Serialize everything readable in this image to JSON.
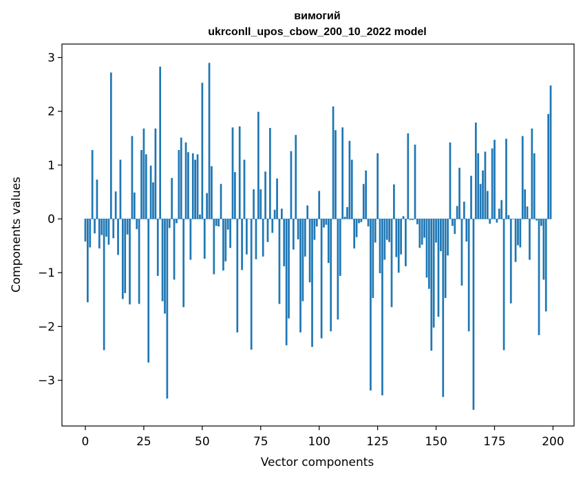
{
  "chart_data": {
    "type": "bar",
    "title_line1": "вимогий",
    "title_line2": "ukrconll_upos_cbow_200_10_2022 model",
    "xlabel": "Vector components",
    "ylabel": "Components values",
    "xlim": [
      -10,
      209
    ],
    "ylim": [
      -3.85,
      3.25
    ],
    "xticks": [
      0,
      25,
      50,
      75,
      100,
      125,
      150,
      175,
      200
    ],
    "yticks": [
      -3,
      -2,
      -1,
      0,
      1,
      2,
      3
    ],
    "ytick_labels": [
      "−3",
      "−2",
      "−1",
      "0",
      "1",
      "2",
      "3"
    ],
    "grid": false,
    "color": "#1f77b4",
    "x": [
      0,
      1,
      2,
      3,
      4,
      5,
      6,
      7,
      8,
      9,
      10,
      11,
      12,
      13,
      14,
      15,
      16,
      17,
      18,
      19,
      20,
      21,
      22,
      23,
      24,
      25,
      26,
      27,
      28,
      29,
      30,
      31,
      32,
      33,
      34,
      35,
      36,
      37,
      38,
      39,
      40,
      41,
      42,
      43,
      44,
      45,
      46,
      47,
      48,
      49,
      50,
      51,
      52,
      53,
      54,
      55,
      56,
      57,
      58,
      59,
      60,
      61,
      62,
      63,
      64,
      65,
      66,
      67,
      68,
      69,
      70,
      71,
      72,
      73,
      74,
      75,
      76,
      77,
      78,
      79,
      80,
      81,
      82,
      83,
      84,
      85,
      86,
      87,
      88,
      89,
      90,
      91,
      92,
      93,
      94,
      95,
      96,
      97,
      98,
      99,
      100,
      101,
      102,
      103,
      104,
      105,
      106,
      107,
      108,
      109,
      110,
      111,
      112,
      113,
      114,
      115,
      116,
      117,
      118,
      119,
      120,
      121,
      122,
      123,
      124,
      125,
      126,
      127,
      128,
      129,
      130,
      131,
      132,
      133,
      134,
      135,
      136,
      137,
      138,
      139,
      140,
      141,
      142,
      143,
      144,
      145,
      146,
      147,
      148,
      149,
      150,
      151,
      152,
      153,
      154,
      155,
      156,
      157,
      158,
      159,
      160,
      161,
      162,
      163,
      164,
      165,
      166,
      167,
      168,
      169,
      170,
      171,
      172,
      173,
      174,
      175,
      176,
      177,
      178,
      179,
      180,
      181,
      182,
      183,
      184,
      185,
      186,
      187,
      188,
      189,
      190,
      191,
      192,
      193,
      194,
      195,
      196,
      197,
      198,
      199
    ],
    "values": [
      -0.42,
      -1.55,
      -0.53,
      1.28,
      -0.27,
      0.73,
      -0.55,
      -0.3,
      -2.44,
      -0.33,
      -0.48,
      2.72,
      -0.36,
      0.51,
      -0.67,
      1.1,
      -1.49,
      -1.38,
      -0.29,
      -1.59,
      1.54,
      0.49,
      -0.19,
      -1.58,
      1.28,
      1.68,
      1.2,
      -2.67,
      0.99,
      0.68,
      1.68,
      -1.06,
      2.83,
      -1.53,
      -1.76,
      -3.34,
      -0.17,
      0.76,
      -1.13,
      -0.08,
      1.28,
      1.51,
      -1.64,
      1.42,
      1.24,
      -0.76,
      1.22,
      1.1,
      1.2,
      0.08,
      2.53,
      -0.74,
      0.48,
      2.9,
      0.98,
      -1.03,
      -0.13,
      -0.14,
      0.65,
      -0.96,
      -0.79,
      -0.2,
      -0.54,
      1.7,
      0.87,
      -2.11,
      1.72,
      -0.95,
      1.1,
      -0.66,
      0.0,
      -2.43,
      0.55,
      -0.75,
      1.99,
      0.55,
      -0.7,
      0.88,
      -0.43,
      1.69,
      -0.26,
      0.17,
      0.75,
      -1.58,
      0.19,
      -0.88,
      -2.35,
      -1.85,
      1.26,
      -0.57,
      1.56,
      -0.38,
      -2.11,
      -1.53,
      -0.7,
      0.25,
      -1.18,
      -2.38,
      -0.39,
      -0.14,
      0.52,
      -2.22,
      -0.16,
      -0.11,
      -0.82,
      -2.09,
      2.09,
      1.65,
      -1.87,
      -1.06,
      1.7,
      0.04,
      0.22,
      1.45,
      1.1,
      -0.55,
      -0.34,
      -0.08,
      -0.06,
      0.65,
      0.9,
      -0.14,
      -3.19,
      -1.47,
      -0.44,
      1.22,
      -1.01,
      -3.28,
      -0.76,
      -0.39,
      -0.43,
      -1.64,
      0.64,
      -0.71,
      -1.0,
      -0.66,
      0.05,
      -0.88,
      1.59,
      -0.02,
      -0.02,
      1.38,
      -0.1,
      -0.54,
      -0.48,
      -0.35,
      -1.09,
      -1.3,
      -2.45,
      -2.02,
      -0.44,
      -1.82,
      -0.6,
      -3.31,
      -1.47,
      -0.68,
      1.42,
      -0.13,
      -0.28,
      0.24,
      0.95,
      -1.24,
      0.32,
      -0.42,
      -2.09,
      0.8,
      -3.55,
      1.79,
      1.22,
      0.65,
      0.9,
      1.25,
      0.52,
      -0.09,
      1.31,
      1.47,
      -0.07,
      0.19,
      0.35,
      -2.44,
      1.49,
      0.07,
      -1.57,
      0.0,
      -0.8,
      -0.49,
      -0.53,
      1.54,
      0.55,
      0.23,
      -0.76,
      1.68,
      1.22,
      -0.03,
      -2.16,
      -0.13,
      -1.13,
      -1.72,
      1.95,
      2.48
    ]
  }
}
